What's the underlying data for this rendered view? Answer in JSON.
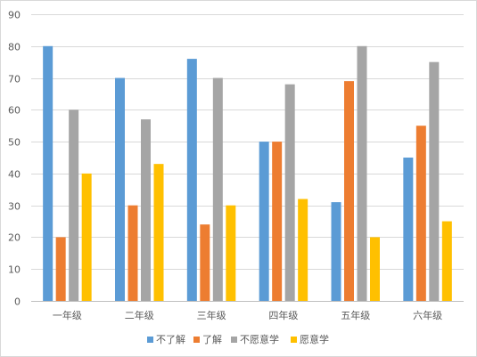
{
  "chart_data": {
    "type": "bar",
    "categories": [
      "一年级",
      "二年级",
      "三年级",
      "四年级",
      "五年级",
      "六年级"
    ],
    "series": [
      {
        "name": "不了解",
        "color": "#5b9bd5",
        "values": [
          80,
          70,
          76,
          50,
          31,
          45
        ]
      },
      {
        "name": "了解",
        "color": "#ed7d31",
        "values": [
          20,
          30,
          24,
          50,
          69,
          55
        ]
      },
      {
        "name": "不愿意学",
        "color": "#a5a5a5",
        "values": [
          60,
          57,
          70,
          68,
          80,
          75
        ]
      },
      {
        "name": "愿意学",
        "color": "#ffc000",
        "values": [
          40,
          43,
          30,
          32,
          20,
          25
        ]
      }
    ],
    "ylim": [
      0,
      90
    ],
    "yticks": [
      0,
      10,
      20,
      30,
      40,
      50,
      60,
      70,
      80,
      90
    ],
    "grid": true,
    "legend": "bottom"
  }
}
